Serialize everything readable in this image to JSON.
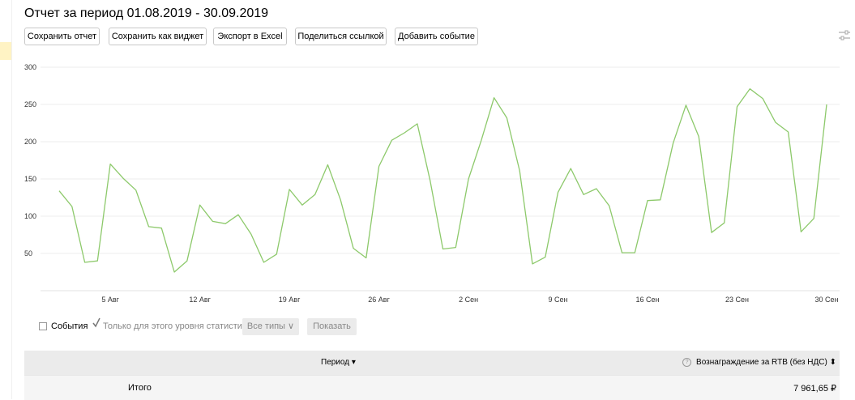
{
  "header": {
    "title": "Отчет за период 01.08.2019 - 30.09.2019"
  },
  "toolbar": {
    "buttons": [
      {
        "id": "save-report",
        "label": "Сохранить отчет"
      },
      {
        "id": "save-widget",
        "label": "Сохранить как виджет"
      },
      {
        "id": "export-excel",
        "label": "Экспорт в Excel"
      },
      {
        "id": "share-link",
        "label": "Поделиться ссылкой"
      },
      {
        "id": "add-event",
        "label": "Добавить событие"
      }
    ],
    "settings_icon": "sliders-icon"
  },
  "chart_data": {
    "type": "line",
    "x": [
      "01.08.2019",
      "02.08.2019",
      "03.08.2019",
      "04.08.2019",
      "05.08.2019",
      "06.08.2019",
      "07.08.2019",
      "08.08.2019",
      "09.08.2019",
      "10.08.2019",
      "11.08.2019",
      "12.08.2019",
      "13.08.2019",
      "14.08.2019",
      "15.08.2019",
      "16.08.2019",
      "17.08.2019",
      "18.08.2019",
      "19.08.2019",
      "20.08.2019",
      "21.08.2019",
      "22.08.2019",
      "23.08.2019",
      "24.08.2019",
      "25.08.2019",
      "26.08.2019",
      "27.08.2019",
      "28.08.2019",
      "29.08.2019",
      "30.08.2019",
      "31.08.2019",
      "01.09.2019",
      "02.09.2019",
      "03.09.2019",
      "04.09.2019",
      "05.09.2019",
      "06.09.2019",
      "07.09.2019",
      "08.09.2019",
      "09.09.2019",
      "10.09.2019",
      "11.09.2019",
      "12.09.2019",
      "13.09.2019",
      "14.09.2019",
      "15.09.2019",
      "16.09.2019",
      "17.09.2019",
      "18.09.2019",
      "19.09.2019",
      "20.09.2019",
      "21.09.2019",
      "22.09.2019",
      "23.09.2019",
      "24.09.2019",
      "25.09.2019",
      "26.09.2019",
      "27.09.2019",
      "28.09.2019",
      "29.09.2019",
      "30.09.2019"
    ],
    "series": [
      {
        "color": "#8dc96b",
        "values": [
          134,
          113,
          38,
          40,
          170,
          151,
          135,
          86,
          84,
          25,
          40,
          115,
          93,
          90,
          102,
          76,
          38,
          49,
          136,
          115,
          129,
          169,
          122,
          57,
          44,
          167,
          202,
          212,
          224,
          148,
          56,
          58,
          150,
          202,
          259,
          232,
          161,
          36,
          45,
          132,
          164,
          129,
          137,
          114,
          51,
          51,
          121,
          122,
          198,
          249,
          207,
          78,
          91,
          247,
          271,
          258,
          226,
          213,
          79,
          97,
          250
        ]
      }
    ],
    "ylim": [
      0,
      300
    ],
    "yticks": [
      50,
      100,
      150,
      200,
      250,
      300
    ],
    "x_tick_labels": [
      {
        "x": "05.08.2019",
        "label": "5 Авг"
      },
      {
        "x": "12.08.2019",
        "label": "12 Авг"
      },
      {
        "x": "19.08.2019",
        "label": "19 Авг"
      },
      {
        "x": "26.08.2019",
        "label": "26 Авг"
      },
      {
        "x": "02.09.2019",
        "label": "2 Сен"
      },
      {
        "x": "09.09.2019",
        "label": "9 Сен"
      },
      {
        "x": "16.09.2019",
        "label": "16 Сен"
      },
      {
        "x": "23.09.2019",
        "label": "23 Сен"
      },
      {
        "x": "30.09.2019",
        "label": "30 Сен"
      }
    ],
    "grid": true,
    "legend": "none"
  },
  "controls": {
    "events_label": "События",
    "events_checked": false,
    "level_only_label": "Только для этого уровня статистики",
    "level_only_checked": true,
    "types_select": "Все типы",
    "show_button": "Показать"
  },
  "table": {
    "columns": [
      {
        "label": "Период ▾"
      },
      {
        "label": "Вознаграждение за RTB (без НДС) ⬍",
        "help_icon": "question-icon"
      }
    ],
    "total_row": {
      "label": "Итого",
      "value": "7 961,65 ₽"
    }
  }
}
